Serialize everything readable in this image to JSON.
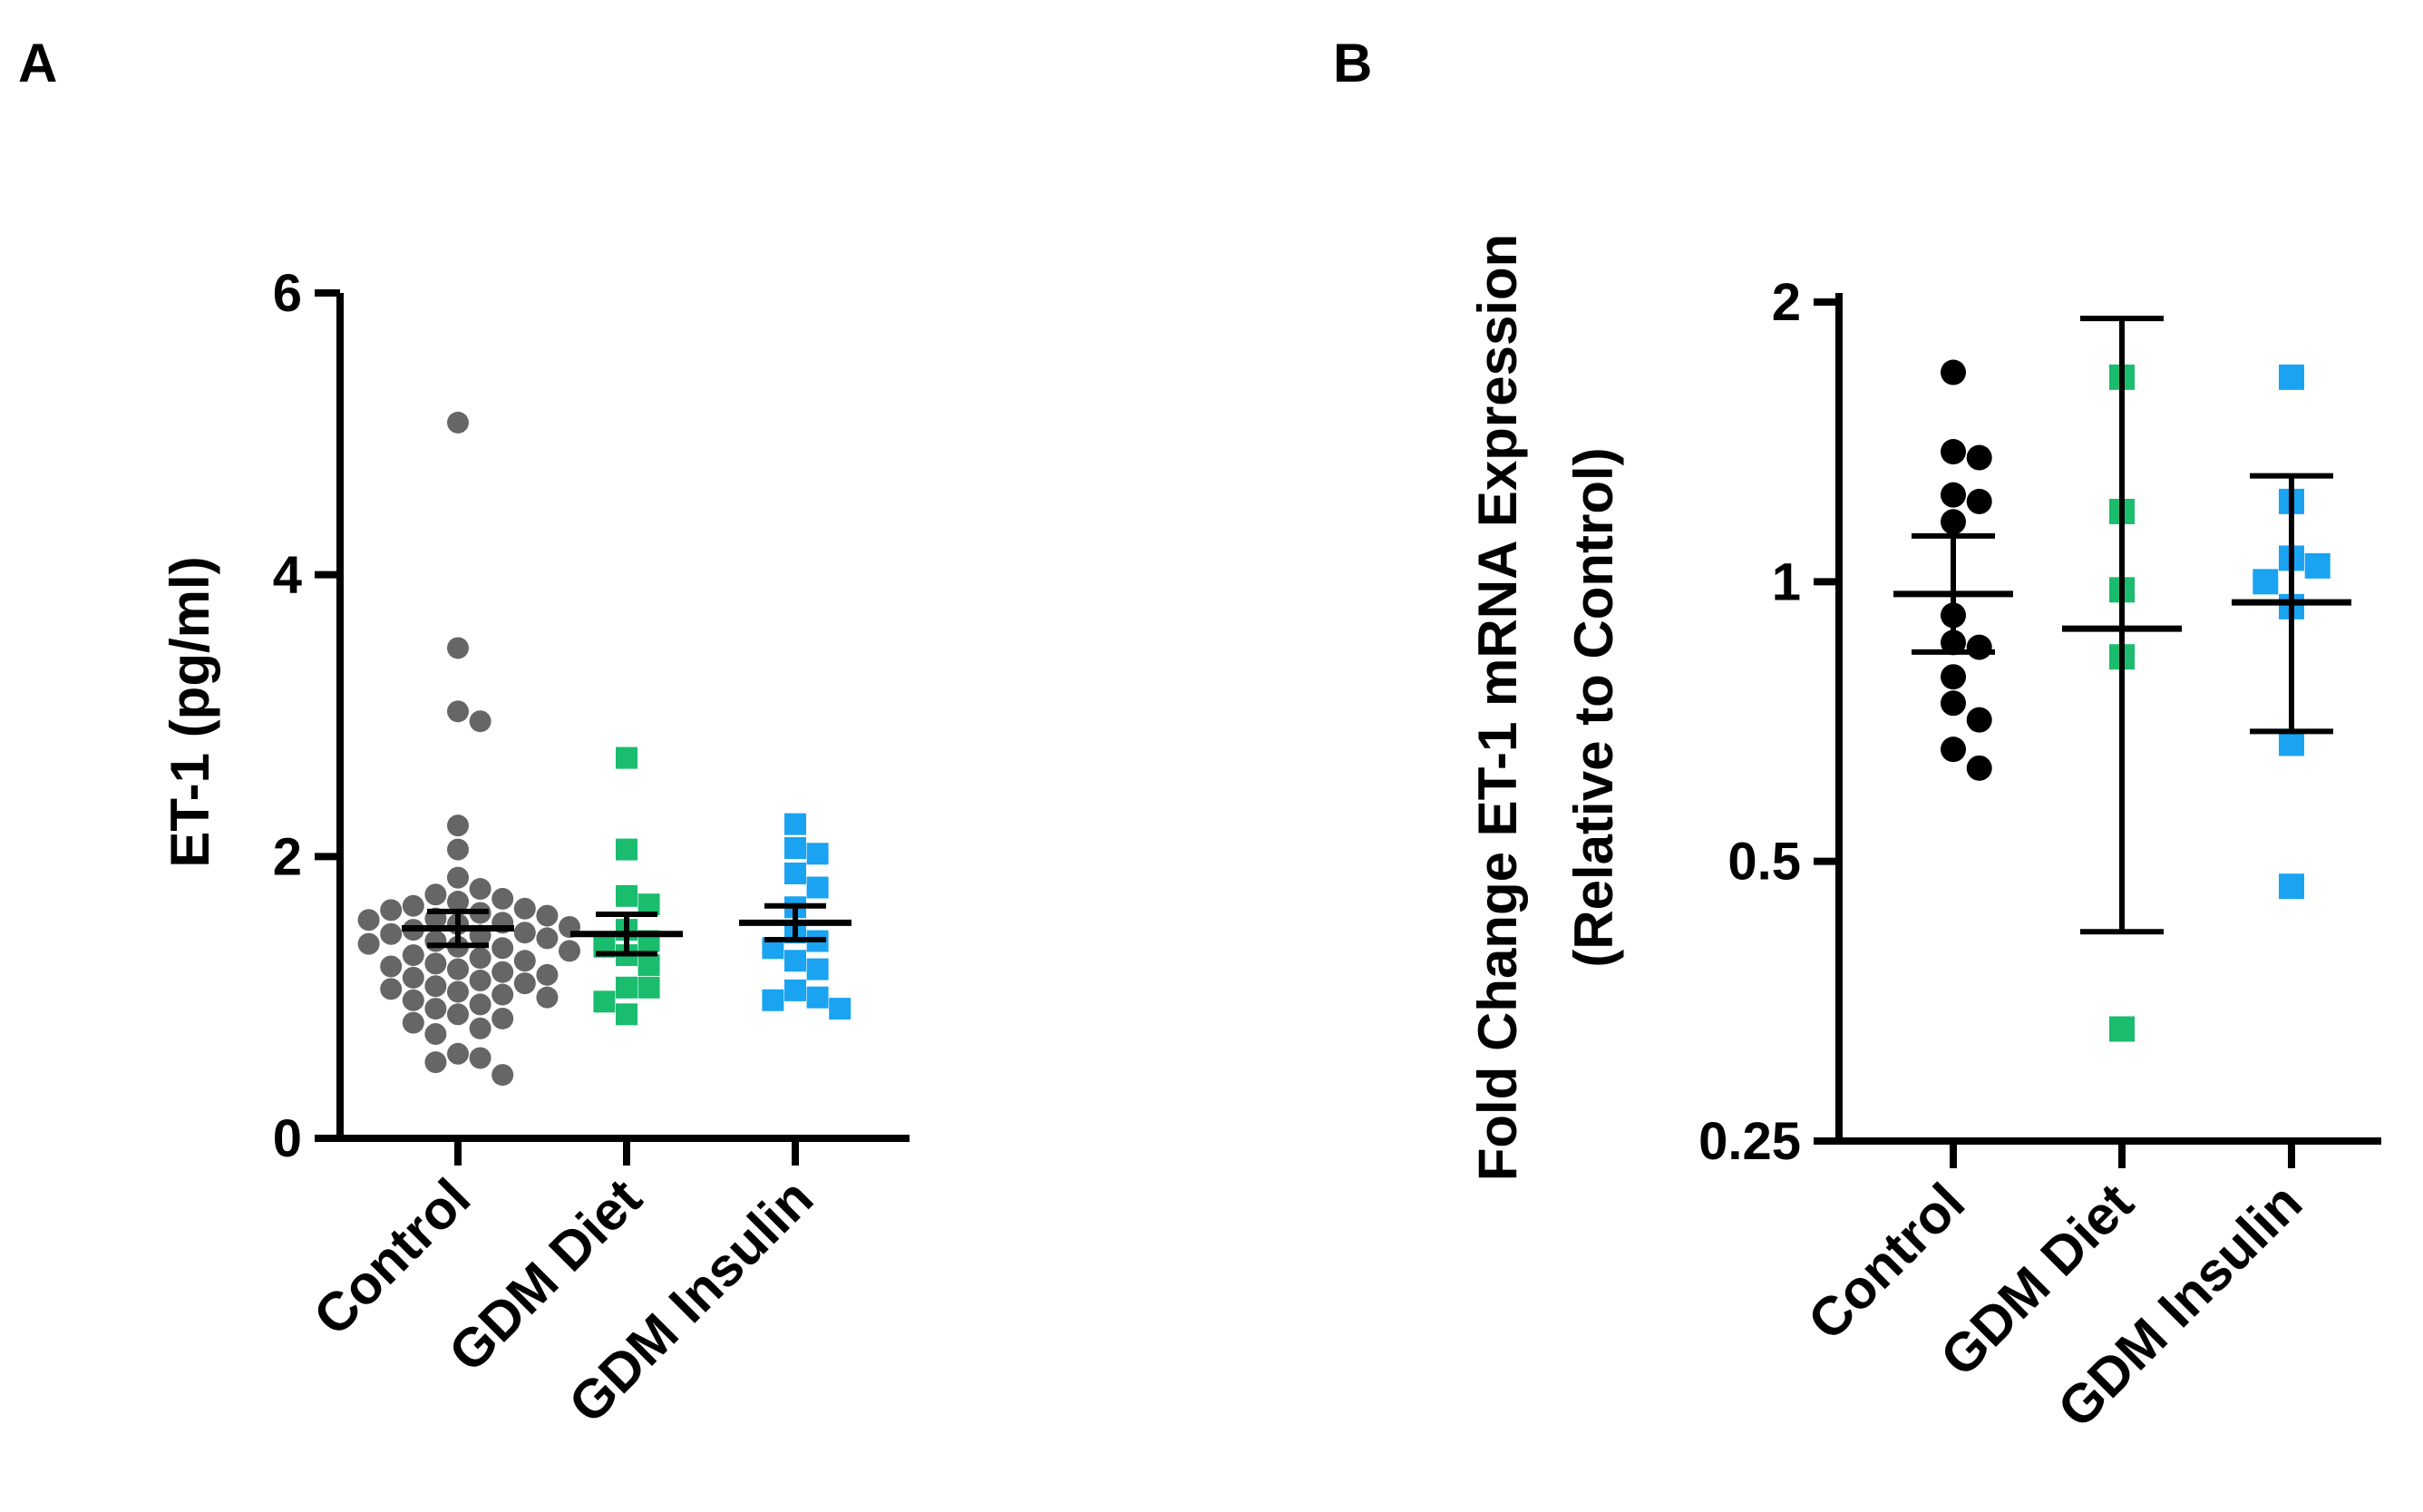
{
  "chart_data": [
    {
      "type": "scatter",
      "panel_label": "A",
      "ylabel": "ET-1 (pg/ml)",
      "yscale": "linear",
      "ylim": [
        0,
        6
      ],
      "yticks": [
        0,
        2,
        4,
        6
      ],
      "ytick_labels": [
        "0",
        "2",
        "4",
        "6"
      ],
      "categories": [
        "Control",
        "GDM Diet",
        "GDM Insulin"
      ],
      "series": [
        {
          "name": "Control",
          "color": "#666666",
          "marker": "circle",
          "points": [
            5.08,
            3.48,
            3.03,
            2.96,
            2.22,
            2.05,
            1.85,
            1.77,
            1.73,
            1.7,
            1.68,
            1.65,
            1.63,
            1.62,
            1.6,
            1.58,
            1.56,
            1.55,
            1.53,
            1.52,
            1.5,
            1.48,
            1.46,
            1.45,
            1.44,
            1.42,
            1.4,
            1.38,
            1.36,
            1.35,
            1.33,
            1.3,
            1.28,
            1.26,
            1.24,
            1.22,
            1.2,
            1.18,
            1.16,
            1.14,
            1.12,
            1.1,
            1.08,
            1.06,
            1.04,
            1.02,
            1.0,
            0.98,
            0.95,
            0.92,
            0.88,
            0.85,
            0.82,
            0.78,
            0.74,
            0.6,
            0.57,
            0.54,
            0.45
          ],
          "mean": 1.49,
          "error_low": 1.37,
          "error_high": 1.61
        },
        {
          "name": "GDM Diet",
          "color": "#1ABC6E",
          "marker": "square",
          "points": [
            2.7,
            2.05,
            1.72,
            1.66,
            1.48,
            1.4,
            1.36,
            1.3,
            1.23,
            1.07,
            1.07,
            0.97,
            0.88
          ],
          "mean": 1.45,
          "error_low": 1.31,
          "error_high": 1.59
        },
        {
          "name": "GDM Insulin",
          "color": "#1AA3F0",
          "marker": "square",
          "points": [
            2.23,
            2.06,
            2.02,
            1.88,
            1.78,
            1.64,
            1.46,
            1.4,
            1.35,
            1.26,
            1.2,
            1.05,
            1.0,
            0.98,
            0.92
          ],
          "mean": 1.53,
          "error_low": 1.41,
          "error_high": 1.65
        }
      ]
    },
    {
      "type": "scatter",
      "panel_label": "B",
      "ylabel_line1": "Fold Change ET-1 mRNA Expression",
      "ylabel_line2": "(Relative to Control)",
      "yscale": "log2",
      "ylim": [
        0.25,
        2
      ],
      "yticks": [
        0.25,
        0.5,
        1,
        2
      ],
      "ytick_labels": [
        "0.25",
        "0.5",
        "1",
        "2"
      ],
      "categories": [
        "Control",
        "GDM Diet",
        "GDM Insulin"
      ],
      "series": [
        {
          "name": "Control",
          "color": "#000000",
          "marker": "circle",
          "points": [
            1.68,
            1.38,
            1.36,
            1.24,
            1.22,
            1.16,
            0.92,
            0.86,
            0.85,
            0.79,
            0.74,
            0.71,
            0.66,
            0.63
          ],
          "mean": 0.97,
          "error_low": 0.84,
          "error_high": 1.12
        },
        {
          "name": "GDM Diet",
          "color": "#1ABC6E",
          "marker": "square",
          "points": [
            1.66,
            1.19,
            0.98,
            0.83,
            0.33
          ],
          "mean": 0.89,
          "error_low": 0.42,
          "error_high": 1.92
        },
        {
          "name": "GDM Insulin",
          "color": "#1AA3F0",
          "marker": "square",
          "points": [
            1.66,
            1.22,
            1.06,
            1.04,
            1.0,
            0.94,
            0.67,
            0.47
          ],
          "mean": 0.95,
          "error_low": 0.69,
          "error_high": 1.3
        }
      ]
    }
  ]
}
